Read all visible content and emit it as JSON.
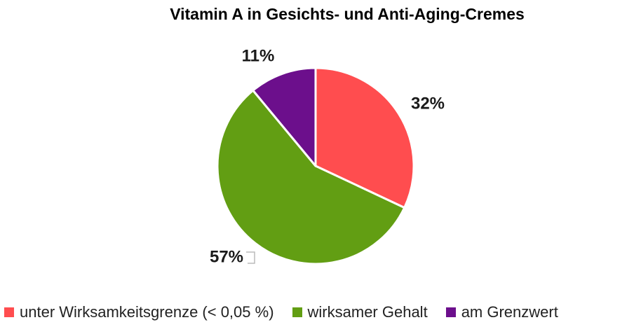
{
  "chart_data": {
    "type": "pie",
    "title": "Vitamin A in Gesichts- und Anti-Aging-Cremes",
    "series": [
      {
        "name": "unter Wirksamkeitsgrenze (< 0,05 %)",
        "value": 32,
        "label": "32%",
        "color": "#ff4d4f"
      },
      {
        "name": "wirksamer Gehalt",
        "value": 57,
        "label": "57%",
        "color": "#629e13"
      },
      {
        "name": "am Grenzwert",
        "value": 11,
        "label": "11%",
        "color": "#6c0f8c"
      }
    ],
    "legend_position": "bottom"
  }
}
